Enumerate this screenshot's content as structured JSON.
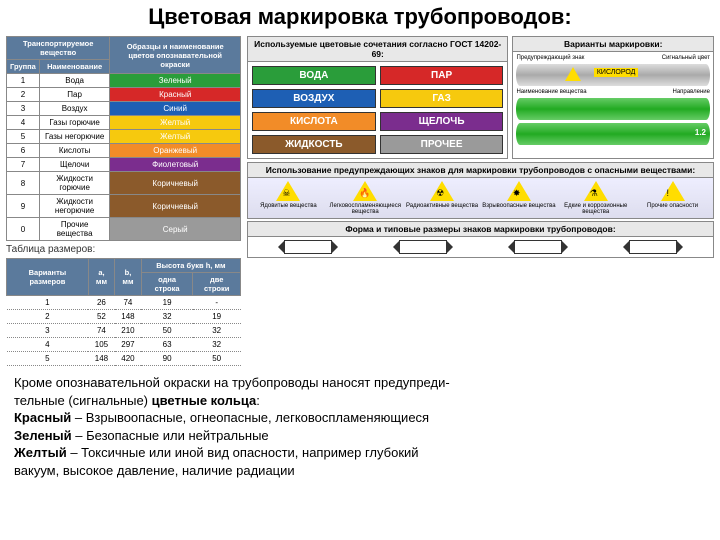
{
  "title": "Цветовая маркировка трубопроводов:",
  "substances_table": {
    "headers": {
      "col1": "Транспортируемое вещество",
      "sub1": "Группа",
      "sub2": "Наименование",
      "col2": "Образцы и наименование цветов опознавательной окраски"
    },
    "rows": [
      {
        "n": "1",
        "name": "Вода",
        "color": "Зеленый",
        "hex": "#2a9d3a"
      },
      {
        "n": "2",
        "name": "Пар",
        "color": "Красный",
        "hex": "#d62828"
      },
      {
        "n": "3",
        "name": "Воздух",
        "color": "Синий",
        "hex": "#1e5fb4"
      },
      {
        "n": "4",
        "name": "Газы горючие",
        "color": "Желтый",
        "hex": "#f6c90e"
      },
      {
        "n": "5",
        "name": "Газы негорючие",
        "color": "Желтый",
        "hex": "#f6c90e"
      },
      {
        "n": "6",
        "name": "Кислоты",
        "color": "Оранжевый",
        "hex": "#f28c28"
      },
      {
        "n": "7",
        "name": "Щелочи",
        "color": "Фиолетовый",
        "hex": "#7b2d8e"
      },
      {
        "n": "8",
        "name": "Жидкости горючие",
        "color": "Коричневый",
        "hex": "#8b5a2b"
      },
      {
        "n": "9",
        "name": "Жидкости негорючие",
        "color": "Коричневый",
        "hex": "#8b5a2b"
      },
      {
        "n": "0",
        "name": "Прочие вещества",
        "color": "Серый",
        "hex": "#9a9a9a"
      }
    ]
  },
  "sizes_table": {
    "caption": "Таблица размеров:",
    "headers": {
      "c1": "Варианты размеров",
      "c2": "a, мм",
      "c3": "b, мм",
      "c4": "Высота букв h, мм",
      "c4a": "одна строка",
      "c4b": "две строки"
    },
    "rows": [
      {
        "v": "1",
        "a": "26",
        "b": "74",
        "h1": "19",
        "h2": "-"
      },
      {
        "v": "2",
        "a": "52",
        "b": "148",
        "h1": "32",
        "h2": "19"
      },
      {
        "v": "3",
        "a": "74",
        "b": "210",
        "h1": "50",
        "h2": "32"
      },
      {
        "v": "4",
        "a": "105",
        "b": "297",
        "h1": "63",
        "h2": "32"
      },
      {
        "v": "5",
        "a": "148",
        "b": "420",
        "h1": "90",
        "h2": "50"
      }
    ]
  },
  "combos": {
    "title": "Используемые цветовые сочетания согласно ГОСТ 14202-69:",
    "badges": [
      {
        "txt": "ВОДА",
        "bg": "#2a9d3a"
      },
      {
        "txt": "ПАР",
        "bg": "#d62828"
      },
      {
        "txt": "ВОЗДУХ",
        "bg": "#1e5fb4"
      },
      {
        "txt": "ГАЗ",
        "bg": "#f6c90e"
      },
      {
        "txt": "КИСЛОТА",
        "bg": "#f28c28"
      },
      {
        "txt": "ЩЕЛОЧЬ",
        "bg": "#7b2d8e"
      },
      {
        "txt": "ЖИДКОСТЬ",
        "bg": "#8b5a2b"
      },
      {
        "txt": "ПРОЧЕЕ",
        "bg": "#9a9a9a"
      }
    ]
  },
  "variants": {
    "title": "Варианты маркировки:",
    "labels": {
      "warn": "Предупреждающий знак",
      "signal": "Сигнальный цвет",
      "subst": "Наименование вещества",
      "dir": "Направление"
    },
    "pipe_label": "КИСЛОРОД",
    "pipe_dim": "1.2"
  },
  "warn_section": {
    "title": "Использование предупреждающих знаков для маркировки трубопроводов с опасными веществами:",
    "items": [
      {
        "t": "Ядовитые вещества",
        "i": "☠"
      },
      {
        "t": "Легковоспламеняющиеся вещества",
        "i": "🔥"
      },
      {
        "t": "Радиоактивные вещества",
        "i": "☢"
      },
      {
        "t": "Взрывоопасные вещества",
        "i": "✸"
      },
      {
        "t": "Едкие и коррозионные вещества",
        "i": "⚗"
      },
      {
        "t": "Прочие опасности",
        "i": "!"
      }
    ]
  },
  "shapes_title": "Форма и типовые размеры знаков маркировки трубопроводов:",
  "bottom": {
    "l1": "Кроме опознавательной окраски на трубопроводы наносят предупреди-",
    "l2": "тельные (сигнальные) ",
    "l2b": "цветные кольца",
    "l2c": ":",
    "l3a": "Красный",
    "l3b": " – Взрывоопасные, огнеопасные, легковоспламеняющиеся",
    "l4a": "Зеленый",
    "l4b": " – Безопасные или нейтральные",
    "l5a": "Желтый",
    "l5b": " – Токсичные или иной вид опасности, например глубокий",
    "l6": "вакуум, высокое давление, наличие радиации"
  }
}
